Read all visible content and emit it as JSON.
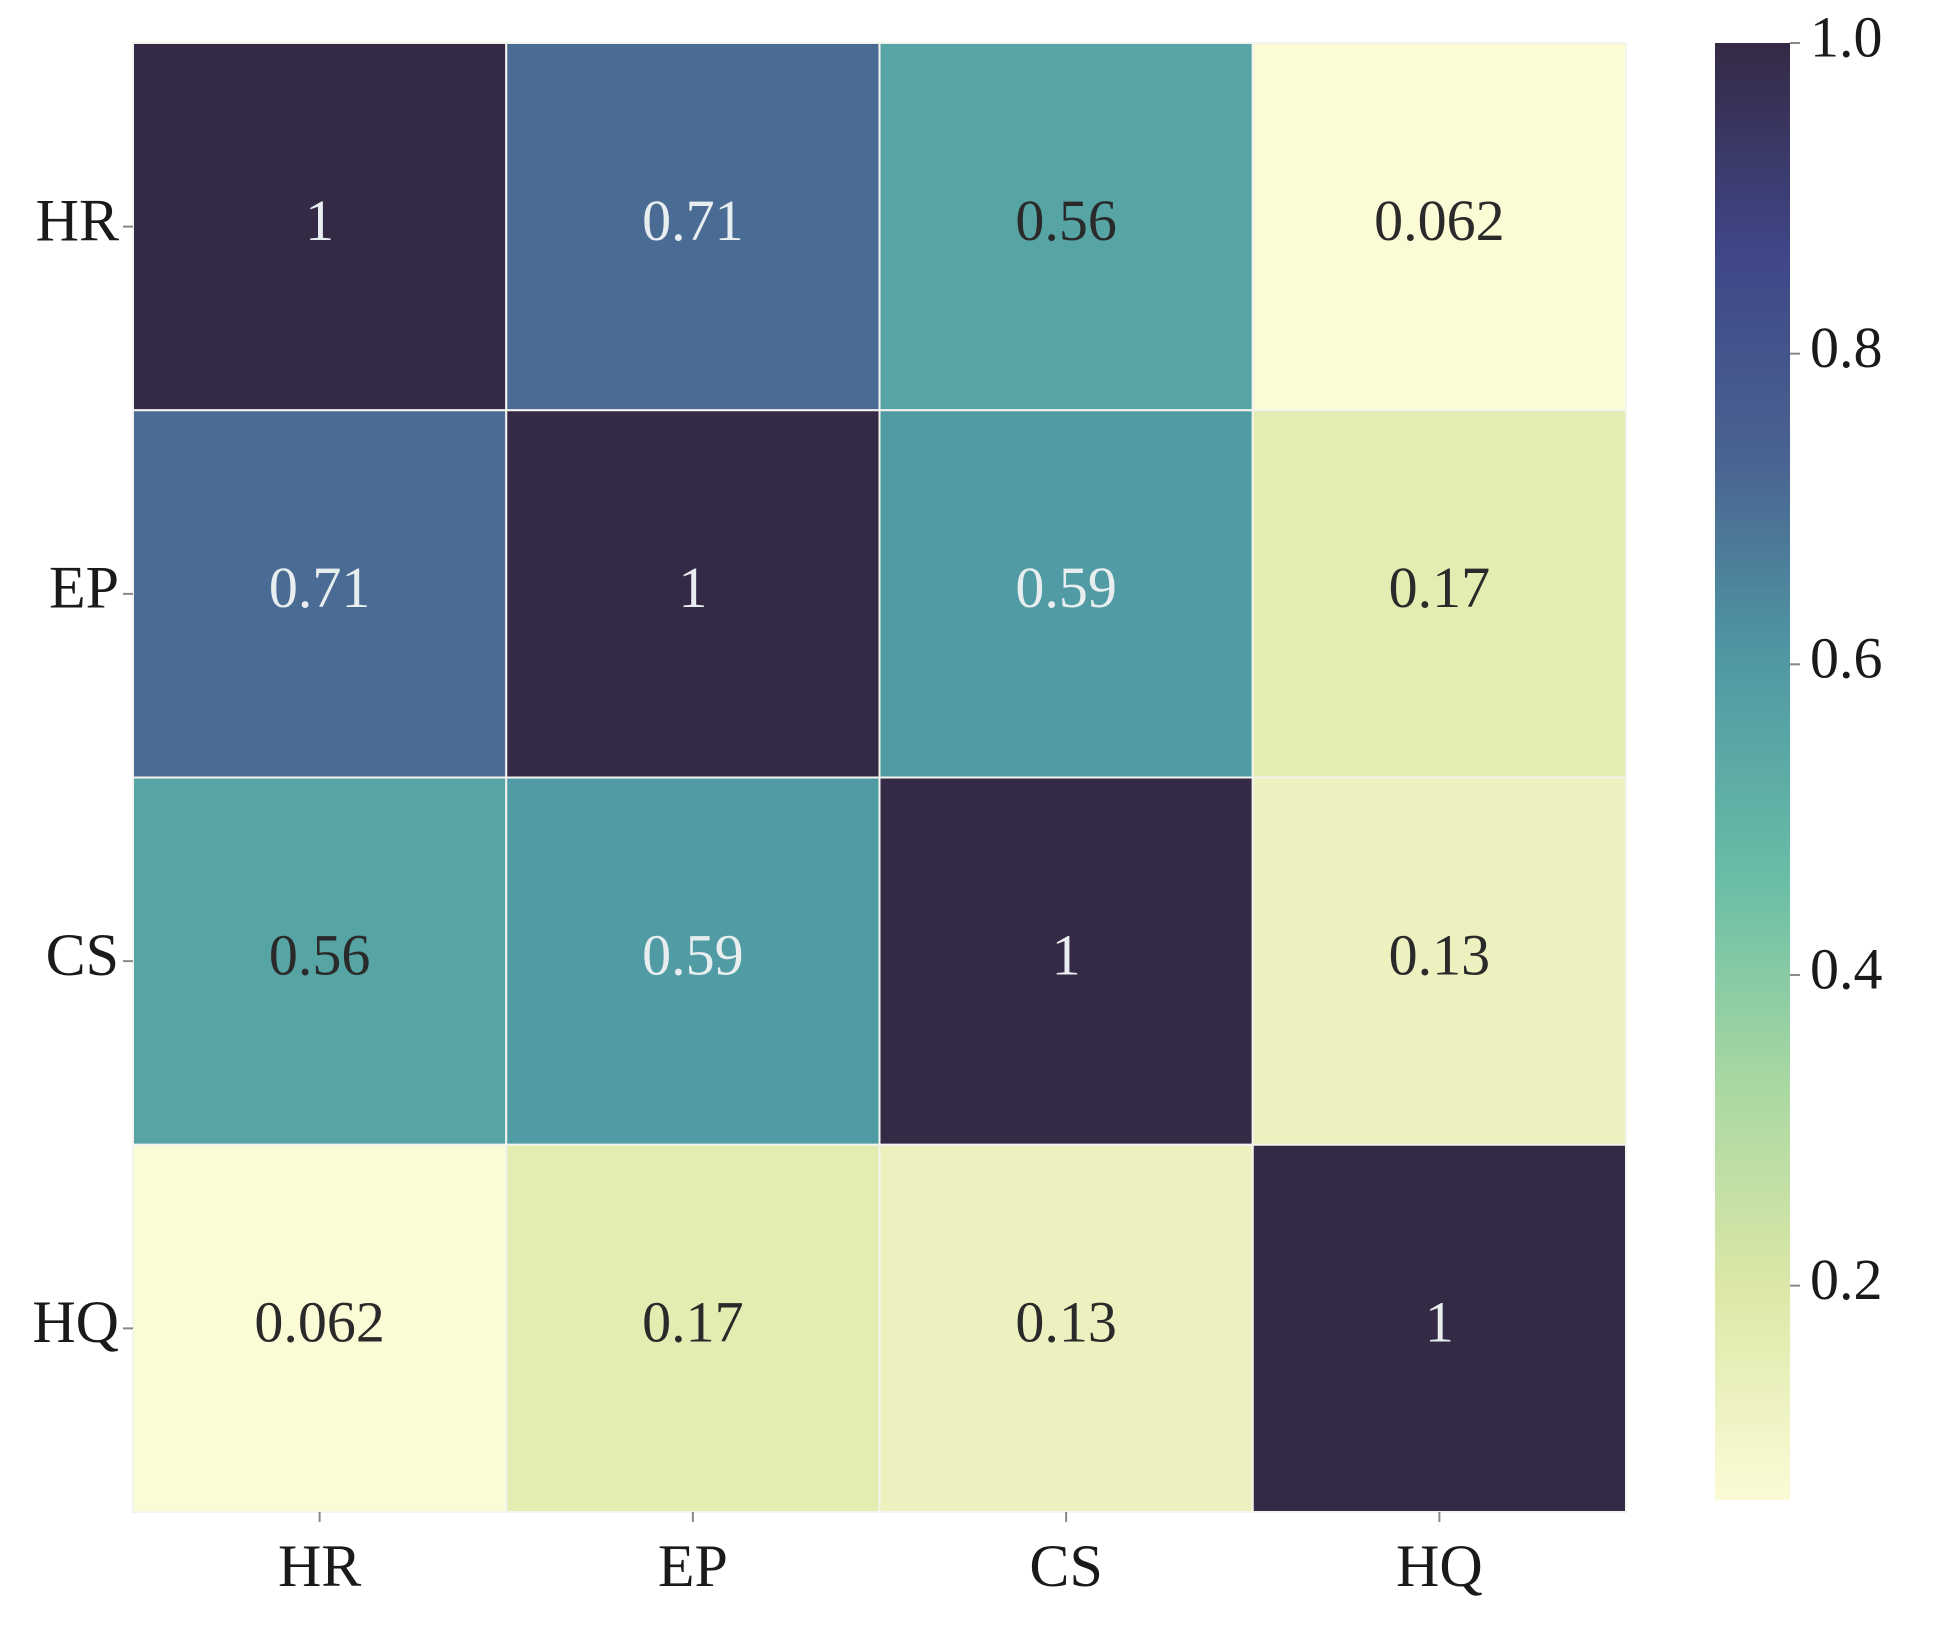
{
  "chart_data": {
    "type": "heatmap",
    "x_categories": [
      "HR",
      "EP",
      "CS",
      "HQ"
    ],
    "y_categories": [
      "HR",
      "EP",
      "CS",
      "HQ"
    ],
    "values": [
      [
        1,
        0.71,
        0.56,
        0.062
      ],
      [
        0.71,
        1,
        0.59,
        0.17
      ],
      [
        0.56,
        0.59,
        1,
        0.13
      ],
      [
        0.062,
        0.17,
        0.13,
        1
      ]
    ],
    "zlim": [
      0.062,
      1
    ],
    "zticks": [
      0.2,
      0.4,
      0.6,
      0.8,
      {
        "value": 1,
        "label": "1.0"
      }
    ],
    "colormap": [
      "#fbfbd6",
      "#dde8a8",
      "#a9d8a2",
      "#68bda6",
      "#509aa4",
      "#496391",
      "#3f4687",
      "#352a45"
    ]
  }
}
